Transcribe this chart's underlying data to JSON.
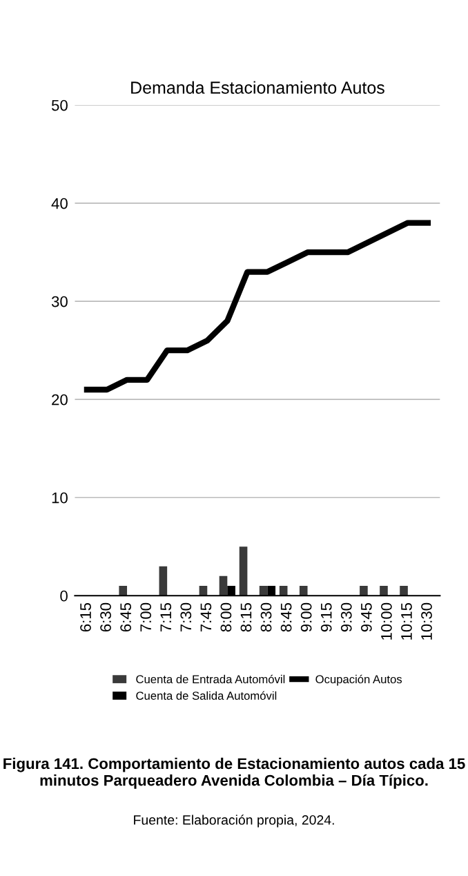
{
  "chart_data": {
    "type": "bar",
    "title": "Demanda Estacionamiento Autos",
    "categories": [
      "6:15",
      "6:30",
      "6:45",
      "7:00",
      "7:15",
      "7:30",
      "7:45",
      "8:00",
      "8:15",
      "8:30",
      "8:45",
      "9:00",
      "9:15",
      "9:30",
      "9:45",
      "10:00",
      "10:15",
      "10:30"
    ],
    "series": [
      {
        "name": "Cuenta de Entrada Automóvil",
        "color": "#3a3a3a",
        "values": [
          0,
          0,
          1,
          0,
          3,
          0,
          1,
          2,
          5,
          1,
          1,
          1,
          0,
          0,
          1,
          1,
          1,
          0
        ]
      },
      {
        "name": "Cuenta de Salida Automóvil",
        "color": "#000000",
        "values": [
          0,
          0,
          0,
          0,
          0,
          0,
          0,
          1,
          0,
          1,
          0,
          0,
          0,
          0,
          0,
          0,
          0,
          0
        ]
      },
      {
        "name": "Ocupación Autos",
        "color": "#000000",
        "type": "line",
        "values": [
          21,
          21,
          22,
          22,
          25,
          25,
          26,
          28,
          33,
          33,
          34,
          35,
          35,
          35,
          36,
          37,
          38,
          38
        ]
      }
    ],
    "ylim": [
      0,
      50
    ],
    "yticks": [
      0,
      10,
      20,
      30,
      40,
      50
    ],
    "grid": "y",
    "legend": "bottom",
    "annotations": [
      "Figura 141. Comportamiento de Estacionamiento autos cada 15 minutos Parqueadero Avenida Colombia – Día Típico.",
      "Fuente: Elaboración propia, 2024."
    ]
  }
}
